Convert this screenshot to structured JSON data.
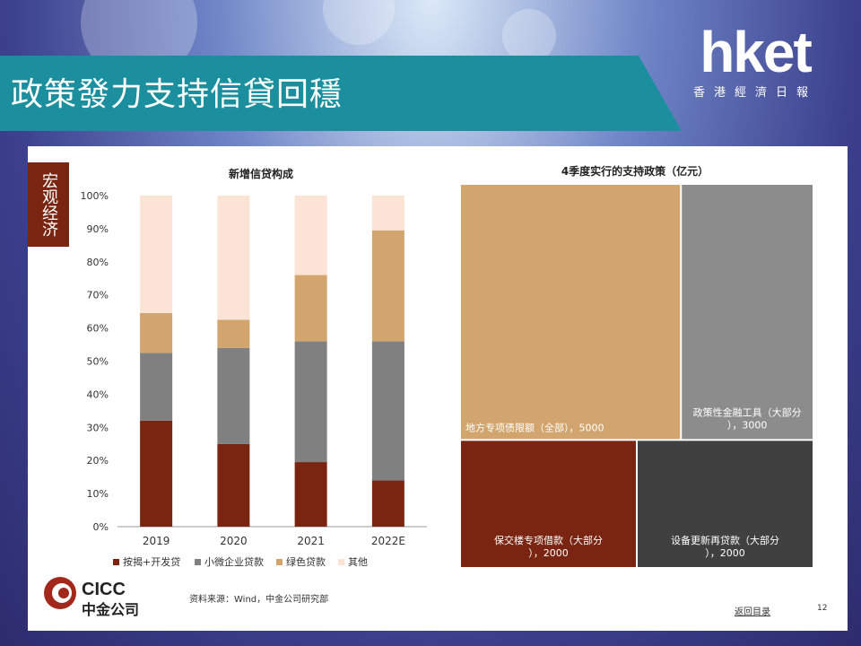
{
  "header": {
    "title": "政策發力支持信貸回穩"
  },
  "logo": {
    "main": "hket",
    "sub": "香港經濟日報"
  },
  "slide": {
    "side_tag": "宏观经济",
    "footer": {
      "brand_en": "CICC",
      "brand_cn": "中金公司",
      "source": "资料来源：Wind，中金公司研究部",
      "back_link": "返回目录",
      "page": "12"
    }
  },
  "chart_data": [
    {
      "type": "bar",
      "stacked": true,
      "title": "新增信贷构成",
      "categories": [
        "2019",
        "2020",
        "2021",
        "2022E"
      ],
      "ylim": [
        0,
        100
      ],
      "yticks": [
        "0%",
        "10%",
        "20%",
        "30%",
        "40%",
        "50%",
        "60%",
        "70%",
        "80%",
        "90%",
        "100%"
      ],
      "legend_position": "bottom",
      "series": [
        {
          "name": "按揭+开发贷",
          "color": "#7a2511",
          "values": [
            32,
            25,
            19.5,
            14
          ]
        },
        {
          "name": "小微企业贷款",
          "color": "#808080",
          "values": [
            20.5,
            29,
            36.5,
            42
          ]
        },
        {
          "name": "绿色贷款",
          "color": "#d3a56e",
          "values": [
            12,
            8.5,
            20,
            33.5
          ]
        },
        {
          "name": "其他",
          "color": "#fbe4d6",
          "values": [
            35.5,
            37.5,
            24,
            10.5
          ]
        }
      ]
    },
    {
      "type": "treemap",
      "title": "4季度实行的支持政策（亿元）",
      "items": [
        {
          "label": "地方专项债限额（全部），5000",
          "value": 5000,
          "color": "#d3a56e"
        },
        {
          "label": "政策性金融工具（大部分），3000",
          "value": 3000,
          "color": "#8c8c8c"
        },
        {
          "label": "保交楼专项借款（大部分），2000",
          "value": 2000,
          "color": "#7a2511"
        },
        {
          "label": "设备更新再贷款（大部分），2000",
          "value": 2000,
          "color": "#404040"
        }
      ]
    }
  ]
}
